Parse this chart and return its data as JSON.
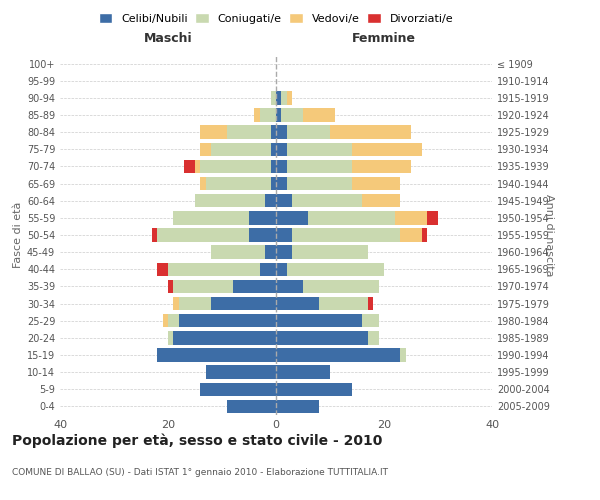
{
  "age_groups": [
    "0-4",
    "5-9",
    "10-14",
    "15-19",
    "20-24",
    "25-29",
    "30-34",
    "35-39",
    "40-44",
    "45-49",
    "50-54",
    "55-59",
    "60-64",
    "65-69",
    "70-74",
    "75-79",
    "80-84",
    "85-89",
    "90-94",
    "95-99",
    "100+"
  ],
  "birth_years": [
    "2005-2009",
    "2000-2004",
    "1995-1999",
    "1990-1994",
    "1985-1989",
    "1980-1984",
    "1975-1979",
    "1970-1974",
    "1965-1969",
    "1960-1964",
    "1955-1959",
    "1950-1954",
    "1945-1949",
    "1940-1944",
    "1935-1939",
    "1930-1934",
    "1925-1929",
    "1920-1924",
    "1915-1919",
    "1910-1914",
    "≤ 1909"
  ],
  "male": {
    "celibi": [
      9,
      14,
      13,
      22,
      19,
      18,
      12,
      8,
      3,
      2,
      5,
      5,
      2,
      1,
      1,
      1,
      1,
      0,
      0,
      0,
      0
    ],
    "coniugati": [
      0,
      0,
      0,
      0,
      1,
      2,
      6,
      11,
      17,
      10,
      17,
      14,
      13,
      12,
      13,
      11,
      8,
      3,
      1,
      0,
      0
    ],
    "vedovi": [
      0,
      0,
      0,
      0,
      0,
      1,
      1,
      0,
      0,
      0,
      0,
      0,
      0,
      1,
      1,
      2,
      5,
      1,
      0,
      0,
      0
    ],
    "divorziati": [
      0,
      0,
      0,
      0,
      0,
      0,
      0,
      1,
      2,
      0,
      1,
      0,
      0,
      0,
      2,
      0,
      0,
      0,
      0,
      0,
      0
    ]
  },
  "female": {
    "nubili": [
      8,
      14,
      10,
      23,
      17,
      16,
      8,
      5,
      2,
      3,
      3,
      6,
      3,
      2,
      2,
      2,
      2,
      1,
      1,
      0,
      0
    ],
    "coniugate": [
      0,
      0,
      0,
      1,
      2,
      3,
      9,
      14,
      18,
      14,
      20,
      16,
      13,
      12,
      12,
      12,
      8,
      4,
      1,
      0,
      0
    ],
    "vedove": [
      0,
      0,
      0,
      0,
      0,
      0,
      0,
      0,
      0,
      0,
      4,
      6,
      7,
      9,
      11,
      13,
      15,
      6,
      1,
      0,
      0
    ],
    "divorziate": [
      0,
      0,
      0,
      0,
      0,
      0,
      1,
      0,
      0,
      0,
      1,
      2,
      0,
      0,
      0,
      0,
      0,
      0,
      0,
      0,
      0
    ]
  },
  "colors": {
    "celibi_nubili": "#3d6da6",
    "coniugati_e": "#c9d9b0",
    "vedovi_e": "#f5c97a",
    "divorziati_e": "#d93030"
  },
  "title": "Popolazione per età, sesso e stato civile - 2010",
  "subtitle": "COMUNE DI BALLAO (SU) - Dati ISTAT 1° gennaio 2010 - Elaborazione TUTTITALIA.IT",
  "xlabel_left": "Maschi",
  "xlabel_right": "Femmine",
  "ylabel_left": "Fasce di età",
  "ylabel_right": "Anni di nascita",
  "xlim": 40,
  "legend_labels": [
    "Celibi/Nubili",
    "Coniugati/e",
    "Vedovi/e",
    "Divorziati/e"
  ],
  "background_color": "#ffffff",
  "grid_color": "#cccccc"
}
